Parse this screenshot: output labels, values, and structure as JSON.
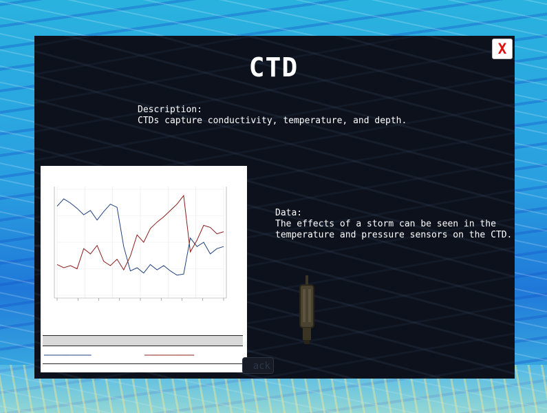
{
  "popup": {
    "title": "CTD",
    "close_label": "X",
    "description_heading": "Description:",
    "description_text": "CTDs capture conductivity, temperature, and depth.",
    "data_heading": "Data:",
    "data_text": "The effects of a storm can be seen in the temperature and pressure sensors on the CTD.",
    "back_label": "ack"
  },
  "colors": {
    "panel": "#0c111c",
    "close_x": "#e01010",
    "series_blue": "#1f3f7a",
    "series_red": "#8b1a1a"
  },
  "icons": {
    "device": "ctd-device-icon"
  },
  "chart_data": {
    "type": "line",
    "title": "",
    "xlabel": "",
    "ylabel": "",
    "series": [
      {
        "values": [
          8.4,
          9.1,
          8.7,
          8.2,
          7.6,
          8.0,
          7.1,
          7.9,
          8.6,
          8.3,
          4.6,
          2.3,
          2.6,
          2.1,
          2.9,
          2.4,
          2.8,
          2.3,
          1.9,
          2.0,
          5.4,
          4.6,
          5.0,
          3.9,
          4.4,
          4.6
        ]
      },
      {
        "values": [
          2.9,
          2.6,
          2.8,
          2.5,
          4.4,
          3.9,
          4.7,
          3.2,
          2.8,
          3.4,
          2.4,
          3.7,
          5.7,
          5.0,
          6.3,
          6.9,
          7.4,
          8.0,
          8.6,
          9.4,
          4.1,
          5.2,
          6.6,
          6.4,
          5.8,
          6.0
        ]
      }
    ]
  }
}
